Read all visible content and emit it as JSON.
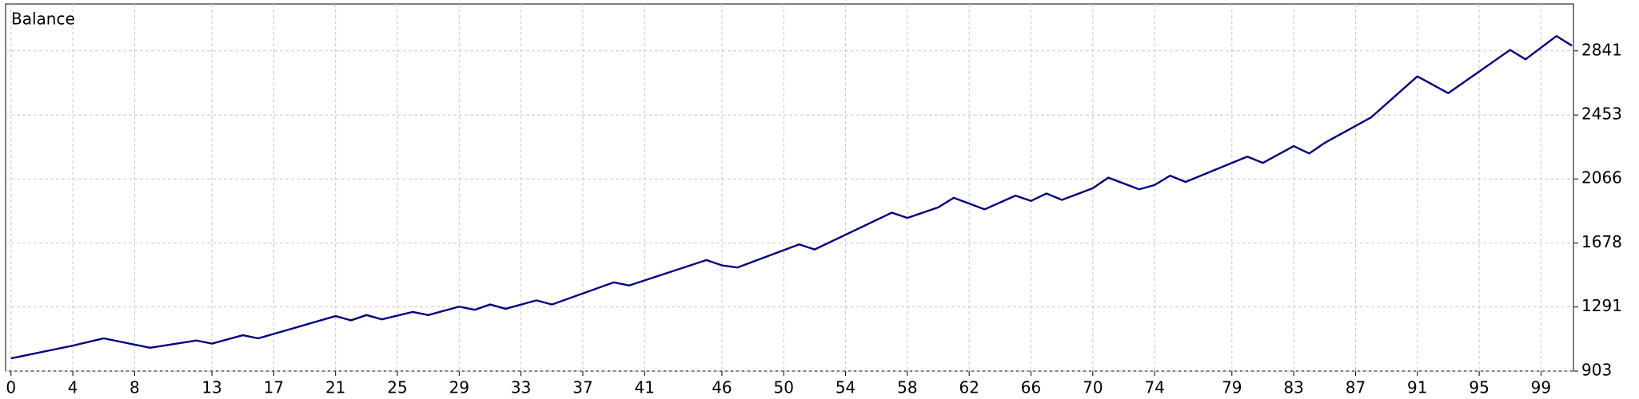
{
  "chart_data": {
    "type": "line",
    "xlim": [
      -0.35,
      101.1
    ],
    "xticks": [
      0,
      4,
      8,
      13,
      17,
      21,
      25,
      29,
      33,
      37,
      41,
      46,
      50,
      54,
      58,
      62,
      66,
      70,
      74,
      79,
      83,
      87,
      91,
      95,
      99
    ],
    "ylim": [
      903,
      3125
    ],
    "yticks": [
      903,
      1291,
      1678,
      2066,
      2453,
      2841
    ],
    "grid": true,
    "x": [
      0,
      4,
      6,
      9,
      12,
      13,
      15,
      16,
      21,
      22,
      23,
      24,
      26,
      27,
      29,
      30,
      31,
      32,
      34,
      35,
      39,
      40,
      45,
      46,
      47,
      51,
      52,
      57,
      58,
      60,
      61,
      63,
      65,
      66,
      67,
      68,
      70,
      71,
      73,
      74,
      75,
      76,
      80,
      81,
      83,
      84,
      85,
      88,
      91,
      93,
      97,
      98,
      100,
      101
    ],
    "series": [
      {
        "name": "Balance",
        "color": "#000080",
        "values": [
          980,
          1057,
          1101,
          1044,
          1088,
          1069,
          1120,
          1101,
          1236,
          1210,
          1242,
          1216,
          1261,
          1242,
          1293,
          1274,
          1306,
          1280,
          1331,
          1306,
          1440,
          1421,
          1575,
          1543,
          1530,
          1670,
          1639,
          1862,
          1830,
          1894,
          1952,
          1882,
          1965,
          1933,
          1978,
          1939,
          2010,
          2074,
          2003,
          2029,
          2086,
          2048,
          2201,
          2163,
          2265,
          2220,
          2284,
          2438,
          2687,
          2585,
          2847,
          2790,
          2931,
          2873
        ]
      }
    ]
  }
}
